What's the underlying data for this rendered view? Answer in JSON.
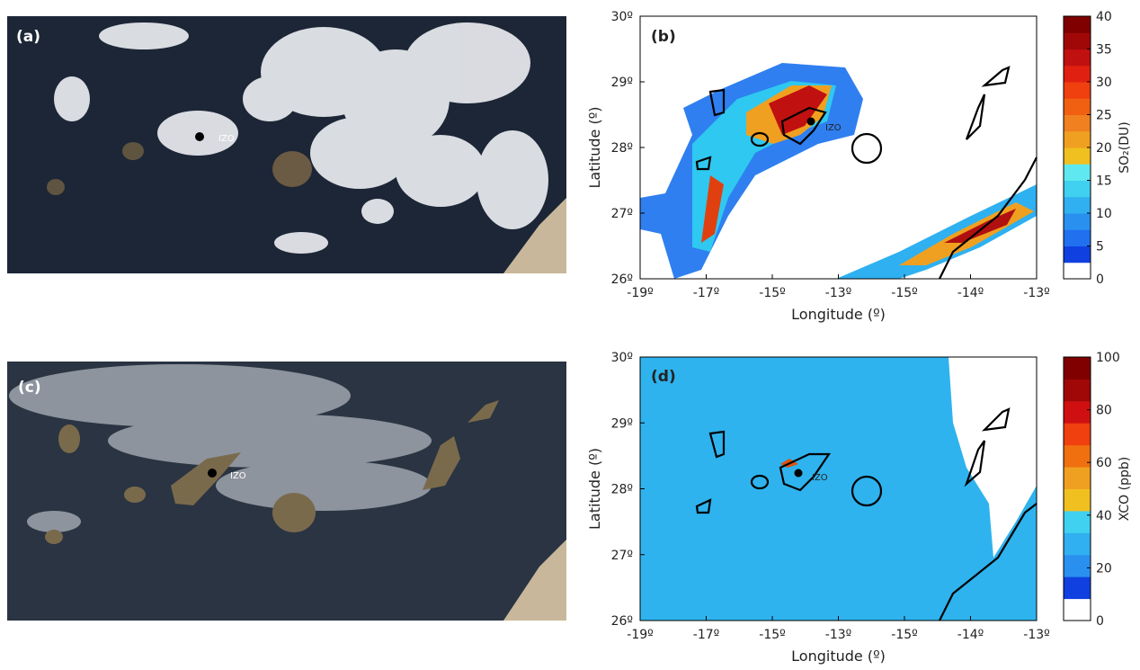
{
  "panels": [
    {
      "label": "(a)",
      "station": "IZO"
    },
    {
      "label": "(b)",
      "station": "IZO",
      "x_axis_label": "Longitude (º)",
      "y_axis_label": "Latitude (º)",
      "x_ticks": [
        "-19º",
        "-17º",
        "-15º",
        "-13º",
        "-15º",
        "-14º",
        "-13º"
      ],
      "y_ticks": [
        "26º",
        "27º",
        "28º",
        "29º",
        "30º"
      ],
      "colorbar": {
        "label": "SO₂(DU)",
        "ticks": [
          0,
          5,
          10,
          15,
          20,
          25,
          30,
          35,
          40
        ]
      }
    },
    {
      "label": "(c)",
      "station": "IZO"
    },
    {
      "label": "(d)",
      "station": "IZO",
      "x_axis_label": "Longitude (º)",
      "y_axis_label": "Latitude (º)",
      "x_ticks": [
        "-19º",
        "-17º",
        "-15º",
        "-13º",
        "-15º",
        "-14º",
        "-13º"
      ],
      "y_ticks": [
        "26º",
        "27º",
        "28º",
        "29º",
        "30º"
      ],
      "colorbar": {
        "label": "XCO (ppb)",
        "ticks": [
          0,
          20,
          40,
          60,
          80,
          100
        ]
      }
    }
  ]
}
